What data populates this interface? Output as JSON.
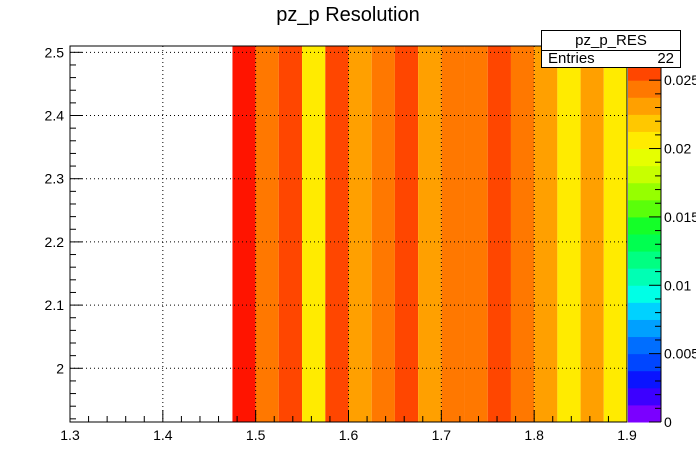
{
  "title": "pz_p Resolution",
  "stats": {
    "name": "pz_p_RES",
    "entries_label": "Entries",
    "entries_value": "22"
  },
  "chart_data": {
    "type": "heatmap",
    "title": "pz_p Resolution",
    "xlabel": "",
    "ylabel": "",
    "xlim": [
      1.3,
      1.9
    ],
    "ylim": [
      1.915,
      2.51
    ],
    "zlim": [
      0,
      0.0275
    ],
    "x_ticks": [
      "1.3",
      "1.4",
      "1.5",
      "1.6",
      "1.7",
      "1.8",
      "1.9"
    ],
    "y_ticks": [
      "2",
      "2.1",
      "2.2",
      "2.3",
      "2.4",
      "2.5"
    ],
    "z_ticks": [
      "0",
      "0.005",
      "0.01",
      "0.015",
      "0.02",
      "0.025"
    ],
    "grid": true,
    "cells": [
      {
        "x0": 1.475,
        "x1": 1.5,
        "z": 0.0273
      },
      {
        "x0": 1.5,
        "x1": 1.525,
        "z": 0.0242
      },
      {
        "x0": 1.525,
        "x1": 1.55,
        "z": 0.0262
      },
      {
        "x0": 1.55,
        "x1": 1.575,
        "z": 0.0212
      },
      {
        "x0": 1.575,
        "x1": 1.6,
        "z": 0.025
      },
      {
        "x0": 1.6,
        "x1": 1.625,
        "z": 0.0225
      },
      {
        "x0": 1.625,
        "x1": 1.65,
        "z": 0.0242
      },
      {
        "x0": 1.65,
        "x1": 1.675,
        "z": 0.025
      },
      {
        "x0": 1.675,
        "x1": 1.7,
        "z": 0.0225
      },
      {
        "x0": 1.7,
        "x1": 1.725,
        "z": 0.0242
      },
      {
        "x0": 1.725,
        "x1": 1.75,
        "z": 0.0242
      },
      {
        "x0": 1.75,
        "x1": 1.775,
        "z": 0.025
      },
      {
        "x0": 1.775,
        "x1": 1.8,
        "z": 0.0242
      },
      {
        "x0": 1.8,
        "x1": 1.825,
        "z": 0.0225
      },
      {
        "x0": 1.825,
        "x1": 1.85,
        "z": 0.0212
      },
      {
        "x0": 1.85,
        "x1": 1.875,
        "z": 0.0225
      },
      {
        "x0": 1.875,
        "x1": 1.9,
        "z": 0.0212
      }
    ],
    "palette": [
      "#7b00ff",
      "#3c00ff",
      "#0a14ff",
      "#0046ff",
      "#006eff",
      "#00a0ff",
      "#00d2ff",
      "#00ffe6",
      "#00ffb4",
      "#00ff82",
      "#00ff50",
      "#14ff28",
      "#5aff0a",
      "#96ff00",
      "#c8ff00",
      "#e6ff00",
      "#ffeb00",
      "#ffc800",
      "#ffa000",
      "#ff7800",
      "#ff4600",
      "#ff1400"
    ]
  }
}
